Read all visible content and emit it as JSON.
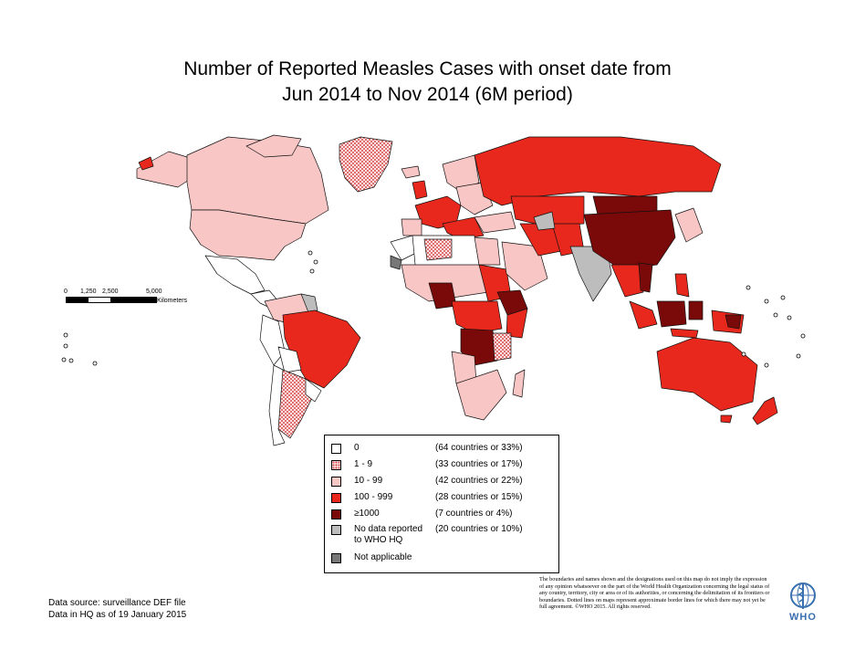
{
  "title": {
    "line1": "Number of Reported Measles Cases with onset date from",
    "line2": "Jun 2014 to Nov 2014 (6M period)"
  },
  "scale": {
    "ticks": [
      "0",
      "1,250",
      "2,500",
      "5,000"
    ],
    "unit": "Kilometers"
  },
  "legend": [
    {
      "label": "0",
      "count": "(64 countries or 33%)",
      "color": "#ffffff",
      "pattern": false
    },
    {
      "label": "1 - 9",
      "count": "(33 countries or 17%)",
      "color": "#f8c5c5",
      "pattern": true
    },
    {
      "label": "10 - 99",
      "count": "(42 countries or 22%)",
      "color": "#f9c6c6",
      "pattern": false
    },
    {
      "label": "100 - 999",
      "count": "(28 countries or 15%)",
      "color": "#e8281c",
      "pattern": false
    },
    {
      "label": "≥1000",
      "count": "(7 countries or 4%)",
      "color": "#7a0a0a",
      "pattern": false
    },
    {
      "label": "No data reported to WHO HQ",
      "label_line1": "No data reported",
      "label_line2": "to WHO HQ",
      "count": "(20 countries or 10%)",
      "color": "#bdbdbd",
      "pattern": false
    },
    {
      "label": "Not applicable",
      "count": "",
      "color": "#777777",
      "pattern": false
    }
  ],
  "source": {
    "line1": "Data source: surveillance DEF file",
    "line2": "Data in HQ as of 19 January 2015"
  },
  "disclaimer": "The boundaries and names shown and the designations used on this map do not imply the expression of any opinion whatsoever on the part of the World Health Organization concerning the legal status of any country, territory, city or area or of its authorities, or concerning the delimitation of its frontiers or boundaries.  Dotted lines on maps represent approximate border lines for which there may not yet be full agreement. ©WHO 2015. All rights reserved.",
  "logo": {
    "text": "WHO",
    "color": "#3a6fb0"
  }
}
